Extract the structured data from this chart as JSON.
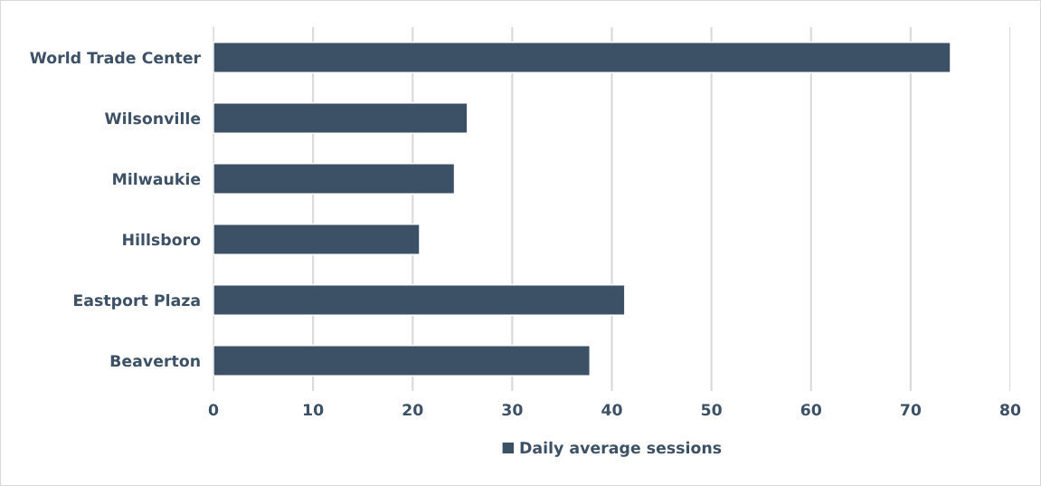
{
  "chart_data": {
    "type": "bar",
    "orientation": "horizontal",
    "categories": [
      "World Trade Center",
      "Wilsonville",
      "Milwaukie",
      "Hillsboro",
      "Eastport Plaza",
      "Beaverton"
    ],
    "series": [
      {
        "name": "Daily average sessions",
        "color": "#3d5166",
        "values": [
          74.0,
          25.5,
          24.2,
          20.7,
          41.3,
          37.8
        ]
      }
    ],
    "xlim": [
      0,
      80
    ],
    "xticks": [
      0,
      10,
      20,
      30,
      40,
      50,
      60,
      70,
      80
    ],
    "grid": "x",
    "legend": "bottom"
  }
}
